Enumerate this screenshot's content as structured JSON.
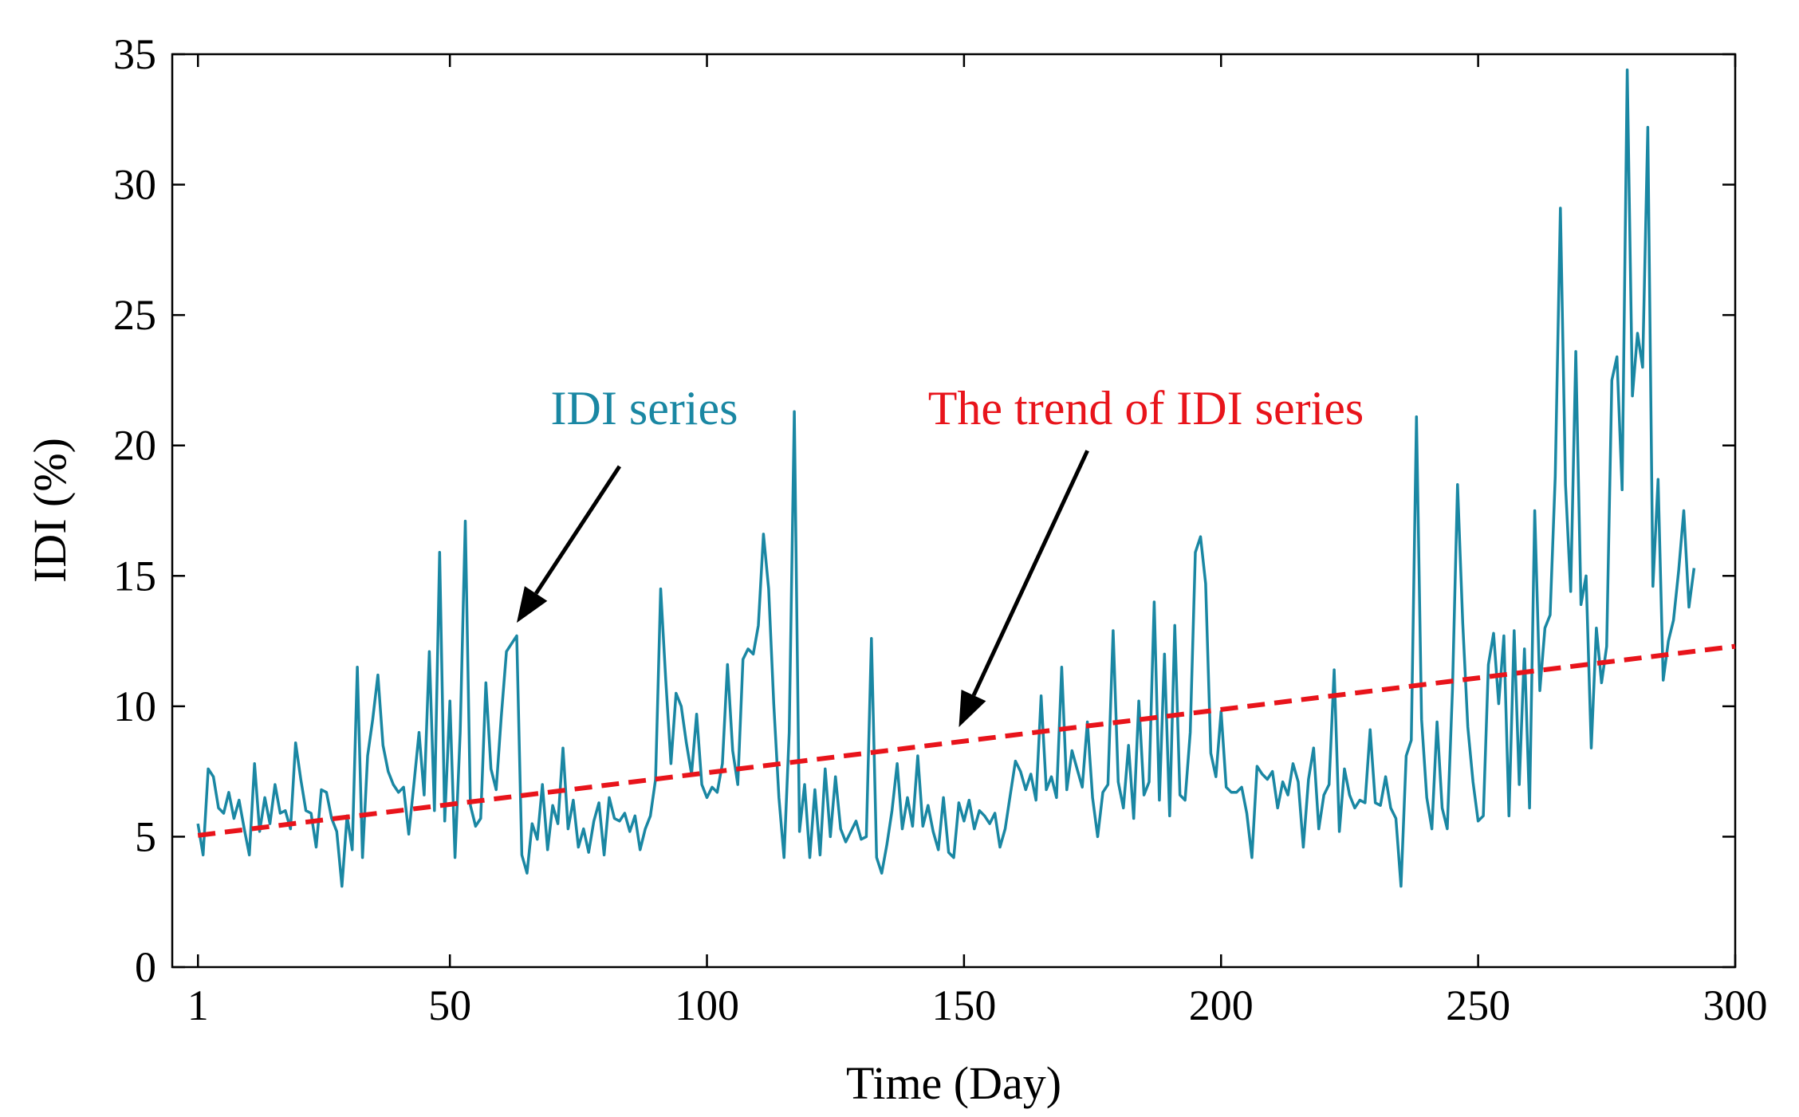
{
  "chart_data": {
    "type": "line",
    "title": "",
    "xlabel": "Time (Day)",
    "ylabel": "IDI (%)",
    "xlim": [
      -4,
      300
    ],
    "ylim": [
      0,
      35
    ],
    "xticks": [
      1,
      50,
      100,
      150,
      200,
      250,
      300
    ],
    "yticks": [
      0,
      5,
      10,
      15,
      20,
      25,
      30,
      35
    ],
    "xtick_labels": [
      "1",
      "50",
      "100",
      "150",
      "200",
      "250",
      "300"
    ],
    "ytick_labels": [
      "0",
      "5",
      "10",
      "15",
      "20",
      "25",
      "30",
      "35"
    ],
    "grid": false,
    "series": [
      {
        "name": "IDI series",
        "color": "#1a87a3",
        "style": "solid",
        "points": [
          [
            1,
            5.5
          ],
          [
            2,
            4.3
          ],
          [
            3,
            7.6
          ],
          [
            4,
            7.3
          ],
          [
            5,
            6.1
          ],
          [
            6,
            5.9
          ],
          [
            7,
            6.7
          ],
          [
            8,
            5.7
          ],
          [
            9,
            6.4
          ],
          [
            10,
            5.3
          ],
          [
            11,
            4.3
          ],
          [
            12,
            7.8
          ],
          [
            13,
            5.2
          ],
          [
            14,
            6.5
          ],
          [
            15,
            5.5
          ],
          [
            16,
            7.0
          ],
          [
            17,
            5.9
          ],
          [
            18,
            6.0
          ],
          [
            19,
            5.3
          ],
          [
            20,
            8.6
          ],
          [
            21,
            7.2
          ],
          [
            22,
            6.0
          ],
          [
            23,
            5.9
          ],
          [
            24,
            4.6
          ],
          [
            25,
            6.8
          ],
          [
            26,
            6.7
          ],
          [
            27,
            5.7
          ],
          [
            28,
            5.2
          ],
          [
            29,
            3.1
          ],
          [
            30,
            5.8
          ],
          [
            31,
            4.5
          ],
          [
            32,
            11.5
          ],
          [
            33,
            4.2
          ],
          [
            34,
            8.1
          ],
          [
            35,
            9.5
          ],
          [
            36,
            11.2
          ],
          [
            37,
            8.5
          ],
          [
            38,
            7.5
          ],
          [
            39,
            7.0
          ],
          [
            40,
            6.7
          ],
          [
            41,
            6.9
          ],
          [
            42,
            5.1
          ],
          [
            43,
            7.0
          ],
          [
            44,
            9.0
          ],
          [
            45,
            6.6
          ],
          [
            46,
            12.1
          ],
          [
            47,
            6.0
          ],
          [
            48,
            15.9
          ],
          [
            49,
            5.6
          ],
          [
            50,
            10.2
          ],
          [
            51,
            4.2
          ],
          [
            52,
            9.0
          ],
          [
            53,
            17.1
          ],
          [
            54,
            6.2
          ],
          [
            55,
            5.4
          ],
          [
            56,
            5.7
          ],
          [
            57,
            10.9
          ],
          [
            58,
            7.6
          ],
          [
            59,
            6.8
          ],
          [
            60,
            9.6
          ],
          [
            61,
            12.1
          ],
          [
            62,
            12.4
          ],
          [
            63,
            12.7
          ],
          [
            64,
            4.3
          ],
          [
            65,
            3.6
          ],
          [
            66,
            5.5
          ],
          [
            67,
            4.9
          ],
          [
            68,
            7.0
          ],
          [
            69,
            4.5
          ],
          [
            70,
            6.2
          ],
          [
            71,
            5.5
          ],
          [
            72,
            8.4
          ],
          [
            73,
            5.3
          ],
          [
            74,
            6.4
          ],
          [
            75,
            4.6
          ],
          [
            76,
            5.3
          ],
          [
            77,
            4.4
          ],
          [
            78,
            5.6
          ],
          [
            79,
            6.3
          ],
          [
            80,
            4.3
          ],
          [
            81,
            6.5
          ],
          [
            82,
            5.7
          ],
          [
            83,
            5.6
          ],
          [
            84,
            5.9
          ],
          [
            85,
            5.2
          ],
          [
            86,
            5.8
          ],
          [
            87,
            4.5
          ],
          [
            88,
            5.3
          ],
          [
            89,
            5.8
          ],
          [
            90,
            7.2
          ],
          [
            91,
            14.5
          ],
          [
            92,
            11.0
          ],
          [
            93,
            7.8
          ],
          [
            94,
            10.5
          ],
          [
            95,
            10.0
          ],
          [
            96,
            8.6
          ],
          [
            97,
            7.4
          ],
          [
            98,
            9.7
          ],
          [
            99,
            7.0
          ],
          [
            100,
            6.5
          ],
          [
            101,
            6.9
          ],
          [
            102,
            6.7
          ],
          [
            103,
            7.8
          ],
          [
            104,
            11.6
          ],
          [
            105,
            8.3
          ],
          [
            106,
            7.0
          ],
          [
            107,
            11.8
          ],
          [
            108,
            12.2
          ],
          [
            109,
            12.0
          ],
          [
            110,
            13.1
          ],
          [
            111,
            16.6
          ],
          [
            112,
            14.5
          ],
          [
            113,
            10.1
          ],
          [
            114,
            6.5
          ],
          [
            115,
            4.2
          ],
          [
            116,
            9.0
          ],
          [
            117,
            21.3
          ],
          [
            118,
            5.2
          ],
          [
            119,
            7.0
          ],
          [
            120,
            4.2
          ],
          [
            121,
            6.8
          ],
          [
            122,
            4.3
          ],
          [
            123,
            7.6
          ],
          [
            124,
            5.0
          ],
          [
            125,
            7.3
          ],
          [
            126,
            5.3
          ],
          [
            127,
            4.8
          ],
          [
            128,
            5.2
          ],
          [
            129,
            5.6
          ],
          [
            130,
            4.9
          ],
          [
            131,
            5.0
          ],
          [
            132,
            12.6
          ],
          [
            133,
            4.2
          ],
          [
            134,
            3.6
          ],
          [
            135,
            4.7
          ],
          [
            136,
            6.0
          ],
          [
            137,
            7.8
          ],
          [
            138,
            5.3
          ],
          [
            139,
            6.5
          ],
          [
            140,
            5.4
          ],
          [
            141,
            8.1
          ],
          [
            142,
            5.4
          ],
          [
            143,
            6.2
          ],
          [
            144,
            5.2
          ],
          [
            145,
            4.5
          ],
          [
            146,
            6.5
          ],
          [
            147,
            4.4
          ],
          [
            148,
            4.2
          ],
          [
            149,
            6.3
          ],
          [
            150,
            5.6
          ],
          [
            151,
            6.4
          ],
          [
            152,
            5.3
          ],
          [
            153,
            6.0
          ],
          [
            154,
            5.8
          ],
          [
            155,
            5.5
          ],
          [
            156,
            5.9
          ],
          [
            157,
            4.6
          ],
          [
            158,
            5.3
          ],
          [
            159,
            6.6
          ],
          [
            160,
            7.9
          ],
          [
            161,
            7.5
          ],
          [
            162,
            6.8
          ],
          [
            163,
            7.4
          ],
          [
            164,
            6.4
          ],
          [
            165,
            10.4
          ],
          [
            166,
            6.8
          ],
          [
            167,
            7.3
          ],
          [
            168,
            6.5
          ],
          [
            169,
            11.5
          ],
          [
            170,
            6.8
          ],
          [
            171,
            8.3
          ],
          [
            172,
            7.6
          ],
          [
            173,
            6.9
          ],
          [
            174,
            9.4
          ],
          [
            175,
            6.5
          ],
          [
            176,
            5.0
          ],
          [
            177,
            6.7
          ],
          [
            178,
            7.0
          ],
          [
            179,
            12.9
          ],
          [
            180,
            7.1
          ],
          [
            181,
            6.1
          ],
          [
            182,
            8.5
          ],
          [
            183,
            5.7
          ],
          [
            184,
            10.2
          ],
          [
            185,
            6.6
          ],
          [
            186,
            7.1
          ],
          [
            187,
            14.0
          ],
          [
            188,
            6.4
          ],
          [
            189,
            12.0
          ],
          [
            190,
            5.8
          ],
          [
            191,
            13.1
          ],
          [
            192,
            6.6
          ],
          [
            193,
            6.4
          ],
          [
            194,
            9.0
          ],
          [
            195,
            15.9
          ],
          [
            196,
            16.5
          ],
          [
            197,
            14.7
          ],
          [
            198,
            8.2
          ],
          [
            199,
            7.3
          ],
          [
            200,
            9.8
          ],
          [
            201,
            6.9
          ],
          [
            202,
            6.7
          ],
          [
            203,
            6.7
          ],
          [
            204,
            6.9
          ],
          [
            205,
            5.9
          ],
          [
            206,
            4.2
          ],
          [
            207,
            7.7
          ],
          [
            208,
            7.4
          ],
          [
            209,
            7.2
          ],
          [
            210,
            7.5
          ],
          [
            211,
            6.1
          ],
          [
            212,
            7.1
          ],
          [
            213,
            6.6
          ],
          [
            214,
            7.8
          ],
          [
            215,
            7.1
          ],
          [
            216,
            4.6
          ],
          [
            217,
            7.2
          ],
          [
            218,
            8.4
          ],
          [
            219,
            5.3
          ],
          [
            220,
            6.6
          ],
          [
            221,
            7.0
          ],
          [
            222,
            11.4
          ],
          [
            223,
            5.2
          ],
          [
            224,
            7.6
          ],
          [
            225,
            6.6
          ],
          [
            226,
            6.1
          ],
          [
            227,
            6.4
          ],
          [
            228,
            6.3
          ],
          [
            229,
            9.1
          ],
          [
            230,
            6.3
          ],
          [
            231,
            6.2
          ],
          [
            232,
            7.3
          ],
          [
            233,
            6.1
          ],
          [
            234,
            5.7
          ],
          [
            235,
            3.1
          ],
          [
            236,
            8.1
          ],
          [
            237,
            8.7
          ],
          [
            238,
            21.1
          ],
          [
            239,
            9.5
          ],
          [
            240,
            6.5
          ],
          [
            241,
            5.3
          ],
          [
            242,
            9.4
          ],
          [
            243,
            6.1
          ],
          [
            244,
            5.3
          ],
          [
            245,
            10.6
          ],
          [
            246,
            18.5
          ],
          [
            247,
            13.2
          ],
          [
            248,
            9.2
          ],
          [
            249,
            7.1
          ],
          [
            250,
            5.6
          ],
          [
            251,
            5.8
          ],
          [
            252,
            11.6
          ],
          [
            253,
            12.8
          ],
          [
            254,
            10.1
          ],
          [
            255,
            12.7
          ],
          [
            256,
            5.8
          ],
          [
            257,
            12.9
          ],
          [
            258,
            7.0
          ],
          [
            259,
            12.2
          ],
          [
            260,
            6.1
          ],
          [
            261,
            17.5
          ],
          [
            262,
            10.6
          ],
          [
            263,
            13.0
          ],
          [
            264,
            13.5
          ],
          [
            265,
            18.8
          ],
          [
            266,
            29.1
          ],
          [
            267,
            18.5
          ],
          [
            268,
            14.4
          ],
          [
            269,
            23.6
          ],
          [
            270,
            13.9
          ],
          [
            271,
            15.0
          ],
          [
            272,
            8.4
          ],
          [
            273,
            13.0
          ],
          [
            274,
            10.9
          ],
          [
            275,
            12.3
          ],
          [
            276,
            22.5
          ],
          [
            277,
            23.4
          ],
          [
            278,
            18.3
          ],
          [
            279,
            34.4
          ],
          [
            280,
            21.9
          ],
          [
            281,
            24.3
          ],
          [
            282,
            23.0
          ],
          [
            283,
            32.2
          ],
          [
            284,
            14.6
          ],
          [
            285,
            18.7
          ],
          [
            286,
            11.0
          ],
          [
            287,
            12.5
          ],
          [
            288,
            13.3
          ],
          [
            289,
            15.2
          ],
          [
            290,
            17.5
          ],
          [
            291,
            13.8
          ],
          [
            292,
            15.3
          ]
        ]
      },
      {
        "name": "The trend of IDI series",
        "color": "#e8141b",
        "style": "dashed",
        "points": [
          [
            1,
            5.05
          ],
          [
            300,
            12.3
          ]
        ]
      }
    ],
    "annotations": [
      {
        "text": "IDI series",
        "color": "#1a87a3",
        "arrow_from": [
          83,
          19.2
        ],
        "arrow_to": [
          63,
          13.2
        ]
      },
      {
        "text": "The trend of IDI series",
        "color": "#e8141b",
        "arrow_from": [
          174,
          19.8
        ],
        "arrow_to": [
          149,
          9.2
        ]
      }
    ]
  }
}
